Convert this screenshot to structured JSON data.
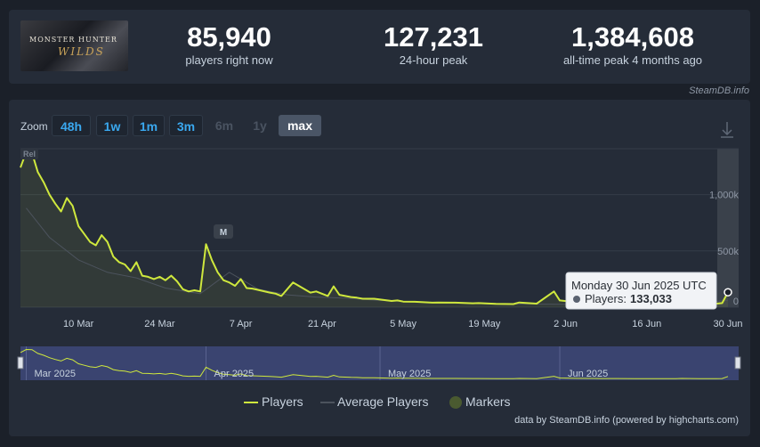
{
  "header": {
    "logo": {
      "line1": "MONSTER HUNTER",
      "line2": "WILDS"
    },
    "stats": [
      {
        "value": "85,940",
        "label": "players right now"
      },
      {
        "value": "127,231",
        "label": "24-hour peak"
      },
      {
        "value": "1,384,608",
        "label": "all-time peak 4 months ago"
      }
    ],
    "credit": "SteamDB.info"
  },
  "toolbar": {
    "zoom_label": "Zoom",
    "zoom_buttons": [
      "48h",
      "1w",
      "1m",
      "3m",
      "6m",
      "1y",
      "max"
    ],
    "selected": "max",
    "download_icon": "download-icon"
  },
  "tooltip": {
    "date": "Monday 30 Jun 2025 UTC",
    "series": "Players:",
    "value": "133,033"
  },
  "markers": {
    "release": "Rel",
    "m": "M"
  },
  "legend": [
    "Players",
    "Average Players",
    "Markers"
  ],
  "footer": {
    "credit": "data by SteamDB.info (powered by highcharts.com)"
  },
  "colors": {
    "players": "#cfe83d",
    "average": "#4c535d",
    "marker": "#4a5a30",
    "accent": "#3aa8ef"
  },
  "chart_data": {
    "type": "line",
    "x_tick_labels": [
      "10 Mar",
      "24 Mar",
      "7 Apr",
      "21 Apr",
      "5 May",
      "19 May",
      "2 Jun",
      "16 Jun",
      "30 Jun"
    ],
    "y_tick_labels": [
      "0",
      "500k",
      "1,000k"
    ],
    "ylim": [
      0,
      1400000
    ],
    "navigator_labels": [
      "Mar 2025",
      "Apr 2025",
      "May 2025",
      "Jun 2025"
    ],
    "series": [
      {
        "name": "Players",
        "x": [
          "2025-02-28",
          "2025-03-01",
          "2025-03-02",
          "2025-03-03",
          "2025-03-04",
          "2025-03-05",
          "2025-03-06",
          "2025-03-07",
          "2025-03-08",
          "2025-03-09",
          "2025-03-10",
          "2025-03-11",
          "2025-03-12",
          "2025-03-13",
          "2025-03-14",
          "2025-03-15",
          "2025-03-16",
          "2025-03-17",
          "2025-03-18",
          "2025-03-19",
          "2025-03-20",
          "2025-03-21",
          "2025-03-22",
          "2025-03-23",
          "2025-03-24",
          "2025-03-25",
          "2025-03-26",
          "2025-03-27",
          "2025-03-28",
          "2025-03-29",
          "2025-03-30",
          "2025-03-31",
          "2025-04-01",
          "2025-04-02",
          "2025-04-03",
          "2025-04-04",
          "2025-04-05",
          "2025-04-06",
          "2025-04-07",
          "2025-04-08",
          "2025-04-09",
          "2025-04-12",
          "2025-04-13",
          "2025-04-14",
          "2025-04-16",
          "2025-04-19",
          "2025-04-20",
          "2025-04-22",
          "2025-04-23",
          "2025-04-24",
          "2025-04-26",
          "2025-04-27",
          "2025-04-28",
          "2025-04-30",
          "2025-05-03",
          "2025-05-04",
          "2025-05-05",
          "2025-05-07",
          "2025-05-10",
          "2025-05-11",
          "2025-05-14",
          "2025-05-17",
          "2025-05-18",
          "2025-05-21",
          "2025-05-24",
          "2025-05-25",
          "2025-05-28",
          "2025-05-31",
          "2025-06-01",
          "2025-06-04",
          "2025-06-07",
          "2025-06-08",
          "2025-06-11",
          "2025-06-14",
          "2025-06-15",
          "2025-06-18",
          "2025-06-21",
          "2025-06-22",
          "2025-06-25",
          "2025-06-28",
          "2025-06-29",
          "2025-06-30"
        ],
        "values": [
          1240000,
          1380000,
          1370000,
          1200000,
          1110000,
          1000000,
          920000,
          850000,
          970000,
          900000,
          720000,
          650000,
          580000,
          550000,
          640000,
          580000,
          450000,
          400000,
          380000,
          320000,
          400000,
          280000,
          270000,
          250000,
          270000,
          240000,
          280000,
          230000,
          160000,
          140000,
          150000,
          140000,
          560000,
          420000,
          310000,
          240000,
          220000,
          190000,
          250000,
          170000,
          165000,
          130000,
          120000,
          100000,
          220000,
          130000,
          140000,
          100000,
          185000,
          110000,
          90000,
          85000,
          75000,
          75000,
          55000,
          60000,
          50000,
          48000,
          40000,
          42000,
          40000,
          35000,
          36000,
          30000,
          28000,
          42000,
          32000,
          140000,
          60000,
          45000,
          40000,
          38000,
          35000,
          32000,
          34000,
          30000,
          28000,
          40000,
          34000,
          32000,
          36000,
          133033
        ]
      },
      {
        "name": "Average Players",
        "x": [
          "2025-03-01",
          "2025-03-05",
          "2025-03-10",
          "2025-03-15",
          "2025-03-20",
          "2025-03-25",
          "2025-03-31",
          "2025-04-05",
          "2025-04-10",
          "2025-04-15",
          "2025-04-20",
          "2025-04-25",
          "2025-05-01",
          "2025-05-10",
          "2025-05-20",
          "2025-06-01",
          "2025-06-10",
          "2025-06-20",
          "2025-06-30"
        ],
        "values": [
          880000,
          620000,
          420000,
          310000,
          260000,
          170000,
          120000,
          310000,
          160000,
          110000,
          90000,
          80000,
          60000,
          40000,
          30000,
          25000,
          22000,
          20000,
          60000
        ]
      }
    ]
  }
}
